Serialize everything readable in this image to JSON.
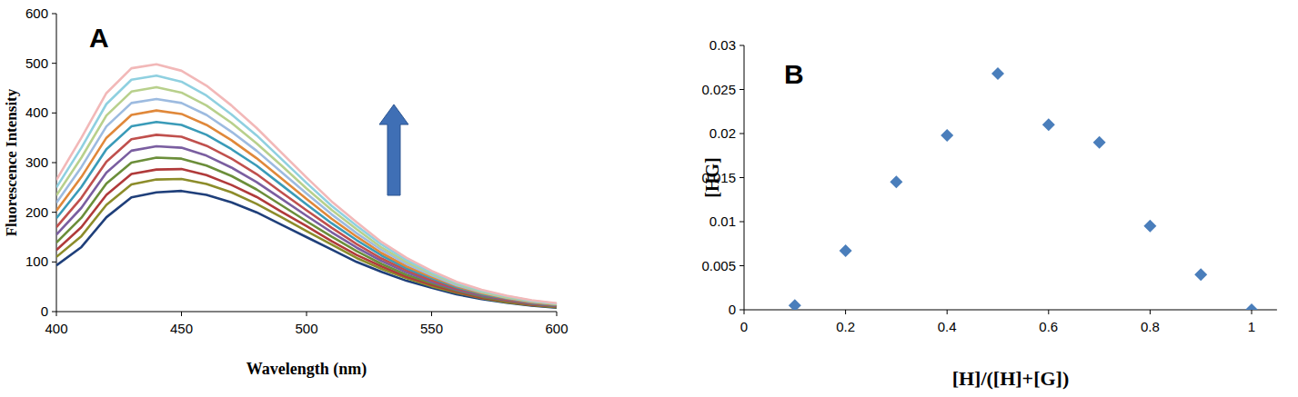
{
  "chart_data": [
    {
      "type": "line",
      "title": "A",
      "x_label": "Wavelength (nm)",
      "y_label": "Fluorescence Intensity",
      "x": [
        400,
        410,
        420,
        430,
        440,
        450,
        460,
        470,
        480,
        490,
        500,
        510,
        520,
        530,
        540,
        550,
        560,
        570,
        580,
        590,
        600
      ],
      "xlim": [
        400,
        600
      ],
      "xticks": [
        400,
        450,
        500,
        550,
        600
      ],
      "ylim": [
        0,
        600
      ],
      "yticks": [
        0,
        100,
        200,
        300,
        400,
        500,
        600
      ],
      "grid": false,
      "series": [
        {
          "color": "#1f3f7a",
          "values": [
            93,
            130,
            190,
            230,
            240,
            243,
            235,
            220,
            200,
            175,
            150,
            125,
            100,
            80,
            62,
            48,
            35,
            25,
            18,
            12,
            8
          ]
        },
        {
          "color": "#8c8c2a",
          "values": [
            110,
            152,
            215,
            256,
            266,
            267,
            257,
            240,
            217,
            190,
            162,
            135,
            108,
            86,
            67,
            51,
            38,
            27,
            19,
            13,
            9
          ]
        },
        {
          "color": "#b03a3a",
          "values": [
            124,
            170,
            235,
            277,
            286,
            287,
            275,
            255,
            231,
            201,
            172,
            142,
            114,
            91,
            70,
            54,
            40,
            28,
            21,
            14,
            10
          ]
        },
        {
          "color": "#6b8e3a",
          "values": [
            139,
            189,
            258,
            300,
            310,
            308,
            294,
            273,
            246,
            214,
            182,
            151,
            122,
            96,
            74,
            57,
            42,
            30,
            22,
            15,
            10
          ]
        },
        {
          "color": "#7a5ea0",
          "values": [
            155,
            209,
            280,
            324,
            333,
            330,
            314,
            290,
            261,
            227,
            193,
            160,
            129,
            102,
            79,
            60,
            44,
            32,
            23,
            16,
            11
          ]
        },
        {
          "color": "#c0504d",
          "values": [
            170,
            229,
            302,
            347,
            356,
            352,
            334,
            308,
            277,
            240,
            204,
            169,
            136,
            107,
            83,
            63,
            46,
            34,
            24,
            17,
            12
          ]
        },
        {
          "color": "#3a9bb8",
          "values": [
            188,
            251,
            327,
            373,
            382,
            376,
            356,
            327,
            294,
            255,
            216,
            178,
            144,
            113,
            87,
            67,
            49,
            35,
            26,
            18,
            13
          ]
        },
        {
          "color": "#e0883a",
          "values": [
            203,
            271,
            350,
            396,
            405,
            398,
            376,
            345,
            309,
            268,
            227,
            187,
            151,
            118,
            91,
            70,
            51,
            37,
            27,
            19,
            14
          ]
        },
        {
          "color": "#9dbbe0",
          "values": [
            219,
            291,
            373,
            420,
            428,
            420,
            396,
            362,
            324,
            281,
            238,
            196,
            158,
            124,
            96,
            73,
            53,
            39,
            28,
            20,
            15
          ]
        },
        {
          "color": "#b8d08c",
          "values": [
            234,
            310,
            395,
            443,
            452,
            441,
            415,
            380,
            339,
            294,
            248,
            205,
            166,
            129,
            100,
            76,
            56,
            40,
            29,
            21,
            15
          ]
        },
        {
          "color": "#8fd0e0",
          "values": [
            250,
            330,
            418,
            467,
            475,
            463,
            435,
            397,
            355,
            307,
            259,
            213,
            173,
            135,
            104,
            79,
            58,
            42,
            31,
            22,
            16
          ]
        },
        {
          "color": "#f2b8b8",
          "values": [
            265,
            350,
            440,
            490,
            498,
            485,
            455,
            415,
            370,
            320,
            270,
            222,
            180,
            140,
            108,
            82,
            60,
            44,
            32,
            23,
            17
          ]
        }
      ]
    },
    {
      "type": "scatter",
      "title": "B",
      "x_label": "[H]/([H]+[G])",
      "y_label": "[HG]",
      "x": [
        0.1,
        0.2,
        0.3,
        0.4,
        0.5,
        0.6,
        0.7,
        0.8,
        0.9,
        1.0
      ],
      "values": [
        0.0005,
        0.0067,
        0.0145,
        0.0198,
        0.0268,
        0.021,
        0.019,
        0.0095,
        0.004,
        0.0
      ],
      "color": "#4a7ebb",
      "marker": "diamond",
      "xlim": [
        0,
        1.05
      ],
      "xticks": [
        0,
        0.2,
        0.4,
        0.6,
        0.8,
        1
      ],
      "ylim": [
        0,
        0.03
      ],
      "yticks": [
        0,
        0.005,
        0.01,
        0.015,
        0.02,
        0.025,
        0.03
      ],
      "grid": false
    }
  ]
}
